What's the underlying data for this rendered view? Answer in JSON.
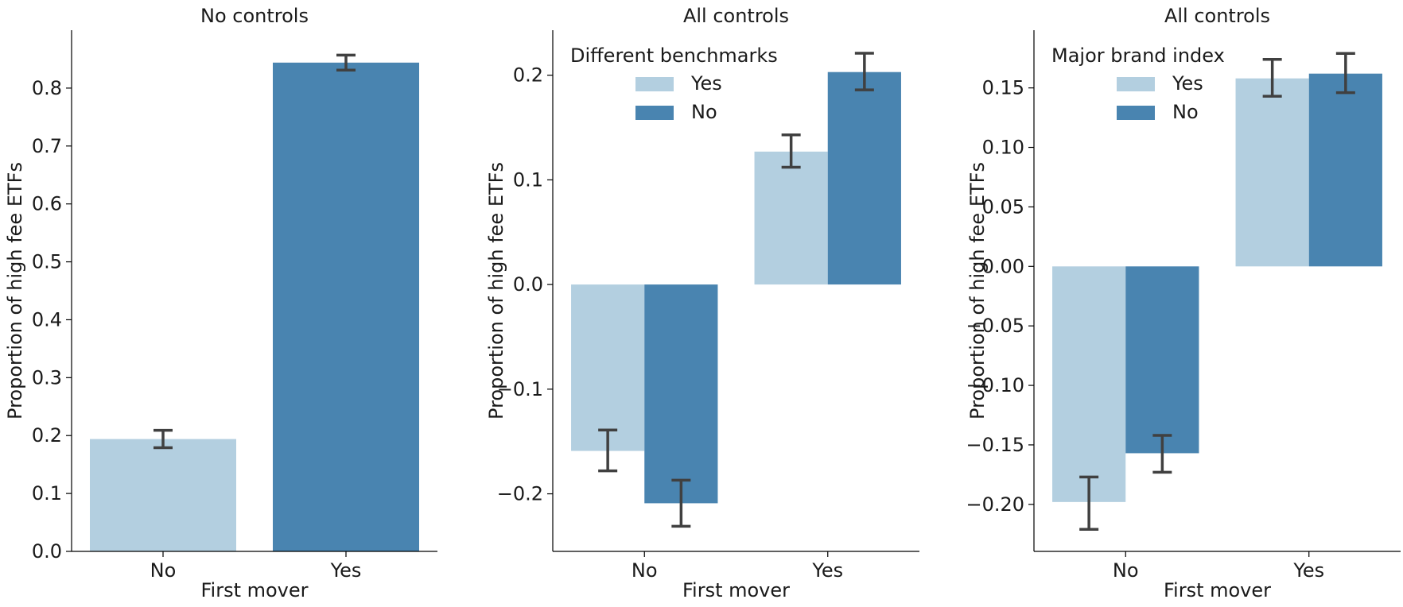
{
  "colors": {
    "light": "#b3cfe0",
    "dark": "#4984b0",
    "error": "#404040",
    "axis": "#000000"
  },
  "chart_data": [
    {
      "type": "bar",
      "title": "No controls",
      "xlabel": "First mover",
      "ylabel": "Proportion of high fee ETFs",
      "categories": [
        "No",
        "Yes"
      ],
      "ylim": [
        0,
        0.9
      ],
      "yticks": [
        "0.0",
        "0.1",
        "0.2",
        "0.3",
        "0.4",
        "0.5",
        "0.6",
        "0.7",
        "0.8"
      ],
      "ytick_values": [
        0,
        0.1,
        0.2,
        0.3,
        0.4,
        0.5,
        0.6,
        0.7,
        0.8
      ],
      "values": [
        0.194,
        0.844
      ],
      "errors": [
        [
          0.179,
          0.209
        ],
        [
          0.831,
          0.857
        ]
      ],
      "bar_colors": [
        "light",
        "dark"
      ],
      "legend": null
    },
    {
      "type": "bar",
      "title": "All controls",
      "xlabel": "First mover",
      "ylabel": "Proportion of high fee ETFs",
      "categories": [
        "No",
        "Yes"
      ],
      "ylim": [
        -0.255,
        0.243
      ],
      "yticks": [
        "−0.2",
        "−0.1",
        "0.0",
        "0.1",
        "0.2"
      ],
      "ytick_values": [
        -0.2,
        -0.1,
        0,
        0.1,
        0.2
      ],
      "legend": {
        "title": "Different benchmarks",
        "position": "top-left"
      },
      "series": [
        {
          "name": "Yes",
          "color": "light",
          "values": [
            -0.159,
            0.127
          ],
          "errors": [
            [
              -0.178,
              -0.139
            ],
            [
              0.112,
              0.143
            ]
          ]
        },
        {
          "name": "No",
          "color": "dark",
          "values": [
            -0.209,
            0.203
          ],
          "errors": [
            [
              -0.231,
              -0.187
            ],
            [
              0.186,
              0.221
            ]
          ]
        }
      ]
    },
    {
      "type": "bar",
      "title": "All controls",
      "xlabel": "First mover",
      "ylabel": "Proportion of high fee ETFs",
      "categories": [
        "No",
        "Yes"
      ],
      "ylim": [
        -0.2395,
        0.1985
      ],
      "yticks": [
        "−0.20",
        "−0.15",
        "−0.10",
        "−0.05",
        "0.00",
        "0.05",
        "0.10",
        "0.15"
      ],
      "ytick_values": [
        -0.2,
        -0.15,
        -0.1,
        -0.05,
        0,
        0.05,
        0.1,
        0.15
      ],
      "legend": {
        "title": "Major brand index",
        "position": "top-left"
      },
      "series": [
        {
          "name": "Yes",
          "color": "light",
          "values": [
            -0.198,
            0.158
          ],
          "errors": [
            [
              -0.221,
              -0.177
            ],
            [
              0.143,
              0.174
            ]
          ]
        },
        {
          "name": "No",
          "color": "dark",
          "values": [
            -0.157,
            0.162
          ],
          "errors": [
            [
              -0.173,
              -0.142
            ],
            [
              0.146,
              0.179
            ]
          ]
        }
      ]
    }
  ]
}
